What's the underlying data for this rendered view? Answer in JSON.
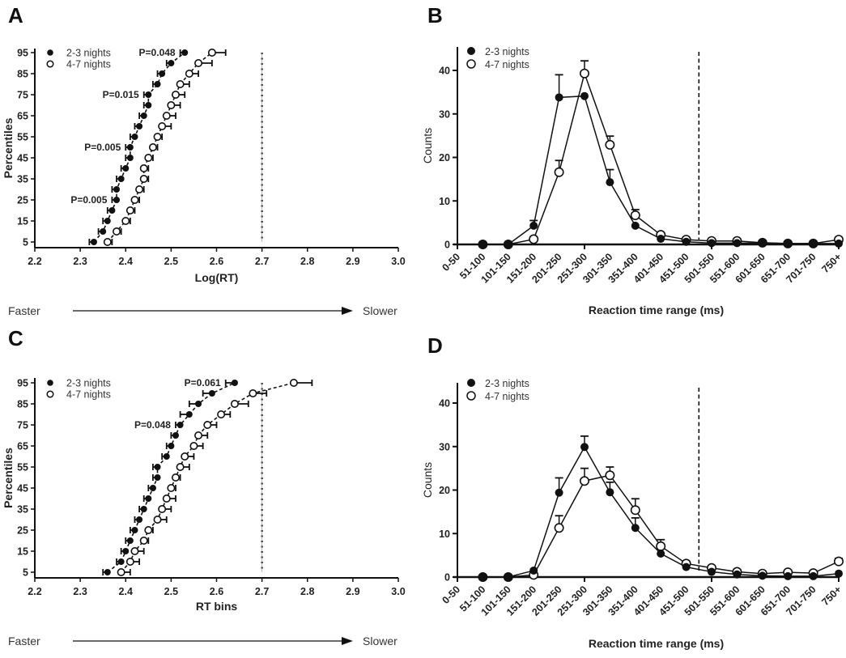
{
  "figure": {
    "panels": [
      "A",
      "B",
      "C",
      "D"
    ]
  },
  "chart_data": [
    {
      "id": "A",
      "type": "scatter",
      "panel_label": "A",
      "xlabel": "Log(RT)",
      "ylabel": "Percentiles",
      "xlim": [
        2.2,
        3.0
      ],
      "ylim": [
        5,
        95
      ],
      "xticks": [
        "2.2",
        "2.3",
        "2.4",
        "2.5",
        "2.6",
        "2.7",
        "2.8",
        "2.9",
        "3.0"
      ],
      "yticks": [
        "5",
        "15",
        "25",
        "35",
        "45",
        "55",
        "65",
        "75",
        "85",
        "95"
      ],
      "direction": {
        "left": "Faster",
        "right": "Slower"
      },
      "reference_line_x": 2.7,
      "legend": {
        "placement": "top-left",
        "entries": [
          "2-3 nights",
          "4-7 nights"
        ]
      },
      "percentiles": [
        5,
        10,
        15,
        20,
        25,
        30,
        35,
        40,
        45,
        50,
        55,
        60,
        65,
        70,
        75,
        80,
        85,
        90,
        95
      ],
      "series": [
        {
          "name": "2-3 nights",
          "marker": "filled",
          "values": [
            2.33,
            2.35,
            2.36,
            2.37,
            2.38,
            2.38,
            2.39,
            2.4,
            2.41,
            2.41,
            2.42,
            2.43,
            2.44,
            2.45,
            2.45,
            2.47,
            2.48,
            2.5,
            2.53
          ],
          "error": [
            0.01,
            0.01,
            0.01,
            0.01,
            0.01,
            0.01,
            0.01,
            0.01,
            0.01,
            0.01,
            0.01,
            0.01,
            0.01,
            0.01,
            0.01,
            0.01,
            0.01,
            0.01,
            0.01
          ]
        },
        {
          "name": "4-7 nights",
          "marker": "open",
          "values": [
            2.36,
            2.38,
            2.4,
            2.41,
            2.42,
            2.43,
            2.44,
            2.44,
            2.45,
            2.46,
            2.47,
            2.48,
            2.49,
            2.5,
            2.51,
            2.52,
            2.54,
            2.56,
            2.59
          ],
          "error": [
            0.01,
            0.01,
            0.01,
            0.01,
            0.01,
            0.01,
            0.01,
            0.01,
            0.01,
            0.01,
            0.01,
            0.02,
            0.02,
            0.02,
            0.02,
            0.02,
            0.02,
            0.03,
            0.03
          ]
        }
      ],
      "annotations": [
        {
          "text": "P=0.048",
          "percentile": 95
        },
        {
          "text": "P=0.015",
          "percentile": 75
        },
        {
          "text": "P=0.005",
          "percentile": 50
        },
        {
          "text": "P=0.005",
          "percentile": 25
        }
      ]
    },
    {
      "id": "B",
      "type": "line",
      "panel_label": "B",
      "xlabel": "Reaction time range (ms)",
      "ylabel": "Counts",
      "ylim": [
        0,
        45
      ],
      "yticks": [
        "0",
        "10",
        "20",
        "30",
        "40"
      ],
      "categories": [
        "0-50",
        "51-100",
        "101-150",
        "151-200",
        "201-250",
        "251-300",
        "301-350",
        "351-400",
        "401-450",
        "451-500",
        "501-550",
        "551-600",
        "601-650",
        "651-700",
        "701-750",
        "750+"
      ],
      "reference_line_between": [
        "451-500",
        "501-550"
      ],
      "legend": {
        "placement": "top-left",
        "entries": [
          "2-3 nights",
          "4-7 nights"
        ]
      },
      "series": [
        {
          "name": "2-3 nights",
          "marker": "filled",
          "values": [
            null,
            0,
            0,
            4.3,
            33.8,
            34.1,
            14.3,
            4.3,
            1.3,
            0.6,
            0.3,
            0.3,
            0.3,
            0.2,
            0.2,
            0.2
          ],
          "error_upper": [
            null,
            null,
            null,
            5.5,
            39.0,
            null,
            17.2,
            null,
            null,
            null,
            null,
            null,
            null,
            null,
            null,
            null
          ]
        },
        {
          "name": "4-7 nights",
          "marker": "open",
          "values": [
            null,
            0,
            0,
            1.2,
            16.6,
            39.3,
            22.9,
            6.7,
            2.2,
            1.1,
            0.8,
            0.8,
            0.4,
            0.2,
            0.2,
            1.1
          ],
          "error_upper": [
            null,
            null,
            null,
            null,
            19.3,
            42.2,
            24.9,
            8.0,
            null,
            null,
            null,
            null,
            null,
            null,
            null,
            null
          ]
        }
      ]
    },
    {
      "id": "C",
      "type": "scatter",
      "panel_label": "C",
      "xlabel": "RT bins",
      "ylabel": "Percentiles",
      "xlim": [
        2.2,
        3.0
      ],
      "ylim": [
        5,
        95
      ],
      "xticks": [
        "2.2",
        "2.3",
        "2.4",
        "2.5",
        "2.6",
        "2.7",
        "2.8",
        "2.9",
        "3.0"
      ],
      "yticks": [
        "5",
        "15",
        "25",
        "35",
        "45",
        "55",
        "65",
        "75",
        "85",
        "95"
      ],
      "direction": {
        "left": "Faster",
        "right": "Slower"
      },
      "reference_line_x": 2.7,
      "legend": {
        "placement": "top-left",
        "entries": [
          "2-3 nights",
          "4-7 nights"
        ]
      },
      "percentiles": [
        5,
        10,
        15,
        20,
        25,
        30,
        35,
        40,
        45,
        50,
        55,
        60,
        65,
        70,
        75,
        80,
        85,
        90,
        95
      ],
      "series": [
        {
          "name": "2-3 nights",
          "marker": "filled",
          "values": [
            2.36,
            2.39,
            2.4,
            2.41,
            2.42,
            2.43,
            2.44,
            2.45,
            2.46,
            2.47,
            2.47,
            2.49,
            2.5,
            2.51,
            2.52,
            2.54,
            2.56,
            2.59,
            2.64
          ],
          "error": [
            0.01,
            0.01,
            0.01,
            0.01,
            0.01,
            0.01,
            0.01,
            0.01,
            0.01,
            0.01,
            0.01,
            0.01,
            0.01,
            0.01,
            0.01,
            0.02,
            0.02,
            0.02,
            0.02
          ]
        },
        {
          "name": "4-7 nights",
          "marker": "open",
          "values": [
            2.39,
            2.41,
            2.42,
            2.44,
            2.45,
            2.47,
            2.48,
            2.49,
            2.5,
            2.51,
            2.52,
            2.53,
            2.55,
            2.56,
            2.58,
            2.61,
            2.64,
            2.68,
            2.77
          ],
          "error": [
            0.02,
            0.02,
            0.02,
            0.01,
            0.01,
            0.02,
            0.02,
            0.02,
            0.01,
            0.01,
            0.02,
            0.02,
            0.02,
            0.02,
            0.02,
            0.02,
            0.03,
            0.03,
            0.04
          ]
        }
      ],
      "annotations": [
        {
          "text": "P=0.061",
          "percentile": 95
        },
        {
          "text": "P=0.048",
          "percentile": 75
        }
      ]
    },
    {
      "id": "D",
      "type": "line",
      "panel_label": "D",
      "xlabel": "Reaction time range (ms)",
      "ylabel": "Counts",
      "ylim": [
        0,
        45
      ],
      "yticks": [
        "0",
        "10",
        "20",
        "30",
        "40"
      ],
      "categories": [
        "0-50",
        "51-100",
        "101-150",
        "151-200",
        "201-250",
        "251-300",
        "301-350",
        "351-400",
        "401-450",
        "451-500",
        "501-550",
        "551-600",
        "601-650",
        "651-700",
        "701-750",
        "750+"
      ],
      "reference_line_between": [
        "451-500",
        "501-550"
      ],
      "legend": {
        "placement": "top-left",
        "entries": [
          "2-3 nights",
          "4-7 nights"
        ]
      },
      "series": [
        {
          "name": "2-3 nights",
          "marker": "filled",
          "values": [
            null,
            0,
            0,
            1.5,
            19.4,
            29.9,
            19.5,
            11.3,
            5.4,
            2.3,
            1.2,
            0.6,
            0.3,
            0.2,
            0.2,
            0.8
          ],
          "error_upper": [
            null,
            null,
            null,
            null,
            22.8,
            32.4,
            21.8,
            13.6,
            null,
            null,
            null,
            null,
            null,
            null,
            null,
            null
          ]
        },
        {
          "name": "4-7 nights",
          "marker": "open",
          "values": [
            null,
            0,
            0,
            0.5,
            11.3,
            22.1,
            23.4,
            15.4,
            7.1,
            3.1,
            2.1,
            1.2,
            0.8,
            1.1,
            0.9,
            3.6
          ],
          "error_upper": [
            null,
            null,
            null,
            null,
            14.1,
            25.0,
            25.3,
            18.0,
            8.6,
            null,
            null,
            null,
            null,
            null,
            null,
            4.3
          ]
        }
      ]
    }
  ]
}
